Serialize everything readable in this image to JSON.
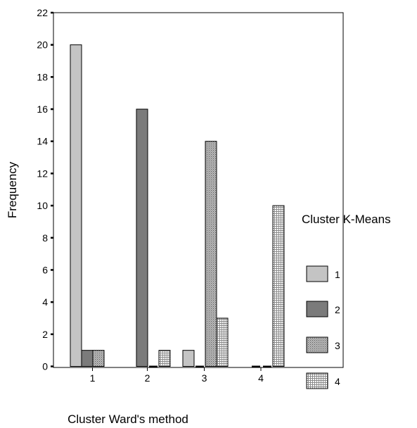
{
  "chart_data": {
    "type": "bar",
    "xlabel": "Cluster Ward's method",
    "ylabel": "Frequency",
    "categories": [
      "1",
      "2",
      "3",
      "4"
    ],
    "ylim": [
      0,
      22
    ],
    "yticks": [
      0,
      2,
      4,
      6,
      8,
      10,
      12,
      14,
      16,
      18,
      20,
      22
    ],
    "grid": false,
    "legend_title": "Cluster K-Means",
    "legend_position": "right",
    "series": [
      {
        "name": "1",
        "values": [
          20,
          0,
          1,
          0
        ],
        "color": "#c4c4c4",
        "pattern": "solid-light"
      },
      {
        "name": "2",
        "values": [
          1,
          16,
          0,
          0
        ],
        "color": "#7b7b7b",
        "pattern": "solid-dark"
      },
      {
        "name": "3",
        "values": [
          1,
          0,
          14,
          0
        ],
        "color": "#9a9a9a",
        "pattern": "fine-stipple"
      },
      {
        "name": "4",
        "values": [
          0,
          1,
          3,
          10
        ],
        "color": "#ffffff",
        "pattern": "grid-dots"
      }
    ]
  }
}
